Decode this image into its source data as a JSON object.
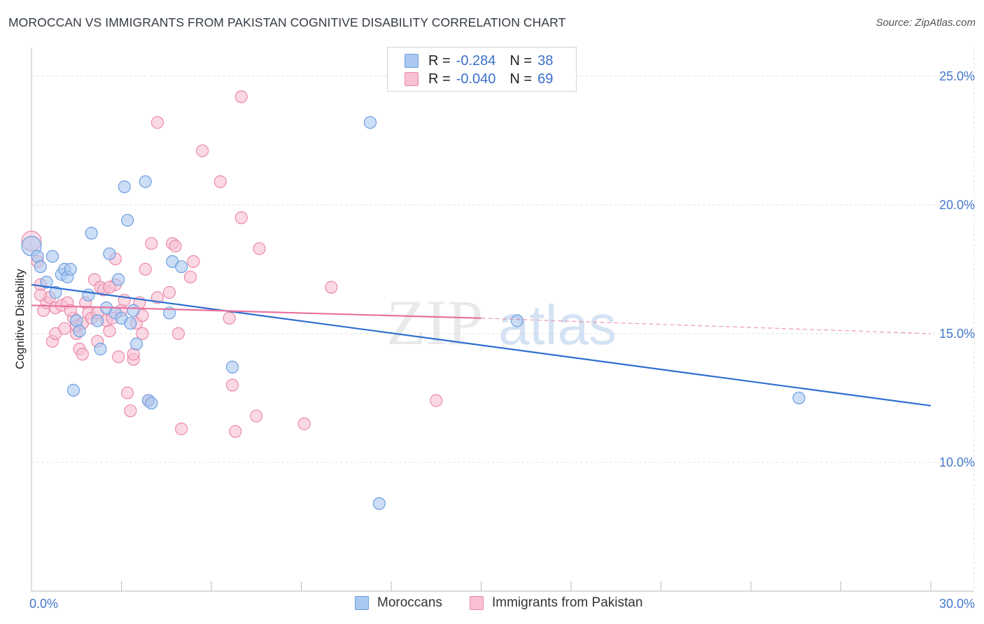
{
  "title": "MOROCCAN VS IMMIGRANTS FROM PAKISTAN COGNITIVE DISABILITY CORRELATION CHART",
  "source": "Source: ZipAtlas.com",
  "watermark": {
    "zip": "ZIP",
    "atlas": "atlas"
  },
  "legend": {
    "rows": [
      {
        "r_label": "R =",
        "r_value": "-0.284",
        "n_label": "N =",
        "n_value": "38"
      },
      {
        "r_label": "R =",
        "r_value": "-0.040",
        "n_label": "N =",
        "n_value": "69"
      }
    ]
  },
  "bottom_legend": {
    "series1": "Moroccans",
    "series2": "Immigrants from Pakistan"
  },
  "colors": {
    "moroccans_fill": "#aac8f0",
    "moroccans_stroke": "#6f9ee0",
    "moroccans_line": "#2f6fd0",
    "pakistan_fill": "#f8c0d2",
    "pakistan_stroke": "#ea8aaa",
    "pakistan_line": "#e8709a",
    "grid": "#e3e3e3",
    "tick_text": "#4477cc"
  },
  "chart_data": {
    "type": "scatter",
    "title": "MOROCCAN VS IMMIGRANTS FROM PAKISTAN COGNITIVE DISABILITY CORRELATION CHART",
    "xlabel": "",
    "ylabel": "Cognitive Disability",
    "xlim": [
      0,
      30
    ],
    "ylim": [
      5,
      26
    ],
    "x_tick_labels": [
      {
        "value": 0,
        "label": "0.0%"
      },
      {
        "value": 30,
        "label": "30.0%"
      }
    ],
    "y_ticks": [
      {
        "value": 10,
        "label": "10.0%"
      },
      {
        "value": 15,
        "label": "15.0%"
      },
      {
        "value": 20,
        "label": "20.0%"
      },
      {
        "value": 25,
        "label": "25.0%"
      }
    ],
    "grid": true,
    "series": [
      {
        "name": "Moroccans",
        "R": -0.284,
        "N": 38,
        "trend": {
          "x": [
            0,
            30
          ],
          "y": [
            16.9,
            12.2
          ]
        },
        "points": [
          [
            0.0,
            18.4
          ],
          [
            0.2,
            18.0
          ],
          [
            0.3,
            17.6
          ],
          [
            0.5,
            17.0
          ],
          [
            0.7,
            18.0
          ],
          [
            0.8,
            16.6
          ],
          [
            1.0,
            17.3
          ],
          [
            1.1,
            17.5
          ],
          [
            1.2,
            17.2
          ],
          [
            1.3,
            17.5
          ],
          [
            1.5,
            15.5
          ],
          [
            1.6,
            15.1
          ],
          [
            1.9,
            16.5
          ],
          [
            2.0,
            18.9
          ],
          [
            2.2,
            15.5
          ],
          [
            2.3,
            14.4
          ],
          [
            2.5,
            16.0
          ],
          [
            2.6,
            18.1
          ],
          [
            2.8,
            15.8
          ],
          [
            2.9,
            17.1
          ],
          [
            3.0,
            15.6
          ],
          [
            3.1,
            20.7
          ],
          [
            3.2,
            19.4
          ],
          [
            3.3,
            15.4
          ],
          [
            3.4,
            15.9
          ],
          [
            3.5,
            14.6
          ],
          [
            3.8,
            20.9
          ],
          [
            3.9,
            12.4
          ],
          [
            4.0,
            12.3
          ],
          [
            4.6,
            15.8
          ],
          [
            4.7,
            17.8
          ],
          [
            5.0,
            17.6
          ],
          [
            6.7,
            13.7
          ],
          [
            11.3,
            23.2
          ],
          [
            11.6,
            8.4
          ],
          [
            16.2,
            15.5
          ],
          [
            25.6,
            12.5
          ],
          [
            1.4,
            12.8
          ]
        ]
      },
      {
        "name": "Immigrants from Pakistan",
        "R": -0.04,
        "N": 69,
        "trend": {
          "x": [
            0,
            15
          ],
          "y": [
            16.1,
            15.6
          ]
        },
        "trend_dashed": {
          "x": [
            15,
            30
          ],
          "y": [
            15.6,
            15.0
          ]
        },
        "points": [
          [
            0.0,
            18.6
          ],
          [
            0.2,
            17.8
          ],
          [
            0.3,
            16.9
          ],
          [
            0.4,
            15.9
          ],
          [
            0.5,
            16.2
          ],
          [
            0.6,
            16.4
          ],
          [
            0.7,
            14.7
          ],
          [
            0.8,
            16.0
          ],
          [
            0.8,
            15.0
          ],
          [
            1.0,
            16.1
          ],
          [
            1.1,
            15.2
          ],
          [
            1.2,
            16.2
          ],
          [
            1.4,
            15.6
          ],
          [
            1.5,
            15.0
          ],
          [
            1.5,
            15.3
          ],
          [
            1.6,
            14.4
          ],
          [
            1.7,
            15.4
          ],
          [
            1.7,
            14.2
          ],
          [
            1.8,
            16.2
          ],
          [
            1.9,
            15.8
          ],
          [
            2.0,
            15.6
          ],
          [
            2.1,
            17.1
          ],
          [
            2.2,
            15.8
          ],
          [
            2.2,
            14.7
          ],
          [
            2.3,
            16.8
          ],
          [
            2.4,
            16.7
          ],
          [
            2.5,
            15.5
          ],
          [
            2.6,
            15.1
          ],
          [
            2.7,
            15.6
          ],
          [
            2.8,
            16.9
          ],
          [
            2.8,
            17.9
          ],
          [
            2.9,
            14.1
          ],
          [
            3.0,
            15.9
          ],
          [
            3.1,
            16.3
          ],
          [
            3.2,
            12.7
          ],
          [
            3.3,
            12.0
          ],
          [
            3.4,
            14.0
          ],
          [
            3.4,
            14.2
          ],
          [
            3.5,
            15.4
          ],
          [
            3.6,
            16.2
          ],
          [
            3.7,
            15.7
          ],
          [
            3.7,
            15.0
          ],
          [
            3.8,
            17.5
          ],
          [
            3.9,
            12.4
          ],
          [
            4.0,
            18.5
          ],
          [
            4.2,
            23.2
          ],
          [
            4.2,
            16.4
          ],
          [
            4.6,
            16.6
          ],
          [
            4.7,
            18.5
          ],
          [
            4.8,
            18.4
          ],
          [
            4.9,
            15.0
          ],
          [
            5.0,
            11.3
          ],
          [
            5.3,
            17.2
          ],
          [
            5.4,
            17.8
          ],
          [
            5.7,
            22.1
          ],
          [
            6.3,
            20.9
          ],
          [
            6.6,
            15.6
          ],
          [
            6.7,
            13.0
          ],
          [
            6.8,
            11.2
          ],
          [
            7.0,
            19.5
          ],
          [
            7.0,
            24.2
          ],
          [
            7.5,
            11.8
          ],
          [
            7.6,
            18.3
          ],
          [
            9.1,
            11.5
          ],
          [
            10.0,
            16.8
          ],
          [
            13.5,
            12.4
          ],
          [
            1.3,
            15.9
          ],
          [
            2.6,
            16.8
          ],
          [
            0.3,
            16.5
          ]
        ]
      }
    ]
  }
}
